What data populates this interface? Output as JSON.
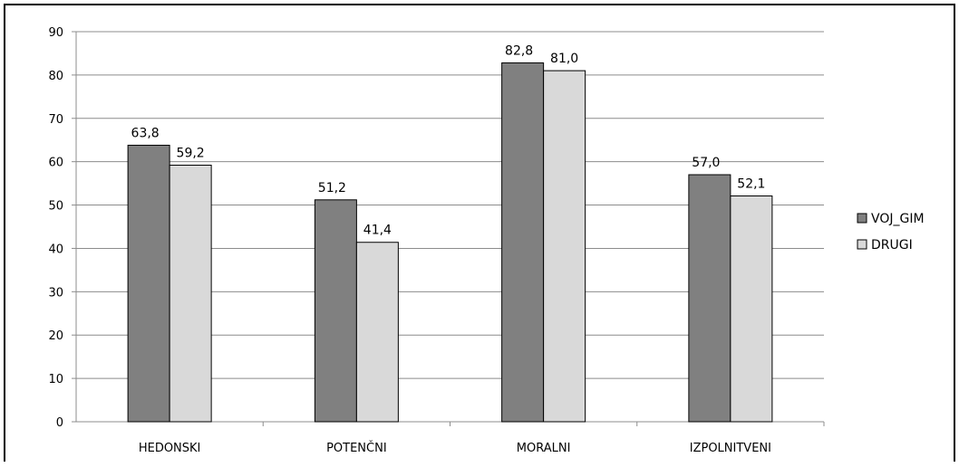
{
  "chart_data": {
    "type": "bar",
    "categories": [
      "HEDONSKI",
      "POTENČNI",
      "MORALNI",
      "IZPOLNITVENI"
    ],
    "series": [
      {
        "name": "VOJ_GIM",
        "values": [
          63.8,
          51.2,
          82.8,
          57.0
        ],
        "labels": [
          "63,8",
          "51,2",
          "82,8",
          "57,0"
        ],
        "color": "#808080"
      },
      {
        "name": "DRUGI",
        "values": [
          59.2,
          41.4,
          81.0,
          52.1
        ],
        "labels": [
          "59,2",
          "41,4",
          "81,0",
          "52,1"
        ],
        "color": "#d9d9d9"
      }
    ],
    "ylim": [
      0,
      90
    ],
    "yticks": [
      0,
      10,
      20,
      30,
      40,
      50,
      60,
      70,
      80,
      90
    ],
    "grid": true,
    "legend_position": "right",
    "title": "",
    "xlabel": "",
    "ylabel": ""
  }
}
